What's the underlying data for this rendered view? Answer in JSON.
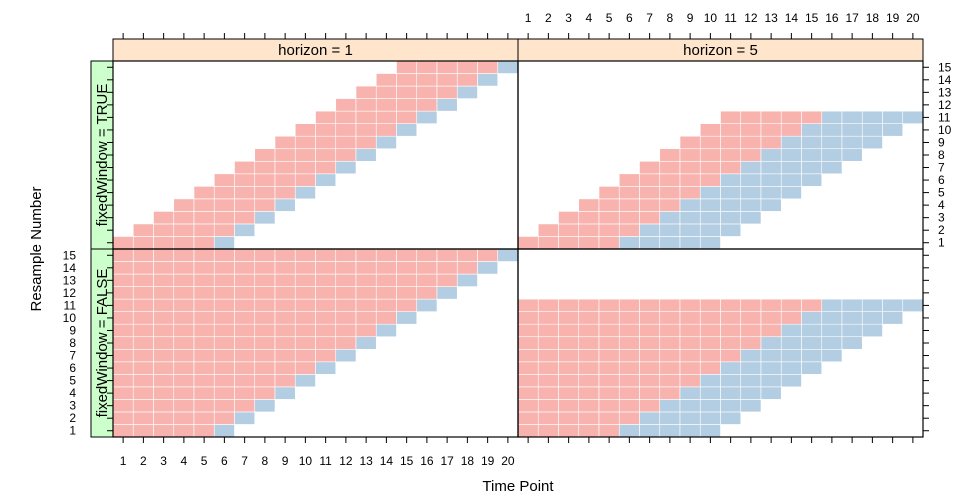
{
  "chart_data": {
    "type": "heatmap",
    "xlabel": "Time Point",
    "ylabel": "Resample Number",
    "x_ticks": [
      1,
      2,
      3,
      4,
      5,
      6,
      7,
      8,
      9,
      10,
      11,
      12,
      13,
      14,
      15,
      16,
      17,
      18,
      19,
      20
    ],
    "y_ticks": [
      1,
      2,
      3,
      4,
      5,
      6,
      7,
      8,
      9,
      10,
      11,
      12,
      13,
      14,
      15
    ],
    "xlim": [
      0.5,
      20.5
    ],
    "ylim": [
      0.5,
      15.5
    ],
    "grid": false,
    "legend": "none",
    "column_strip_labels": [
      "horizon = 1",
      "horizon = 5"
    ],
    "row_strip_labels": [
      "fixedWindow = TRUE",
      "fixedWindow = FALSE"
    ],
    "colors": {
      "training": "#F8B3AE",
      "testing": "#B3CDE3",
      "strip_column": "#FFE5CC",
      "strip_row": "#CCFFCC"
    },
    "panels": [
      {
        "row": "fixedWindow = TRUE",
        "column": "horizon = 1",
        "resamples": [
          {
            "resample": 1,
            "training": [
              1,
              5
            ],
            "testing": [
              6,
              6
            ]
          },
          {
            "resample": 2,
            "training": [
              2,
              6
            ],
            "testing": [
              7,
              7
            ]
          },
          {
            "resample": 3,
            "training": [
              3,
              7
            ],
            "testing": [
              8,
              8
            ]
          },
          {
            "resample": 4,
            "training": [
              4,
              8
            ],
            "testing": [
              9,
              9
            ]
          },
          {
            "resample": 5,
            "training": [
              5,
              9
            ],
            "testing": [
              10,
              10
            ]
          },
          {
            "resample": 6,
            "training": [
              6,
              10
            ],
            "testing": [
              11,
              11
            ]
          },
          {
            "resample": 7,
            "training": [
              7,
              11
            ],
            "testing": [
              12,
              12
            ]
          },
          {
            "resample": 8,
            "training": [
              8,
              12
            ],
            "testing": [
              13,
              13
            ]
          },
          {
            "resample": 9,
            "training": [
              9,
              13
            ],
            "testing": [
              14,
              14
            ]
          },
          {
            "resample": 10,
            "training": [
              10,
              14
            ],
            "testing": [
              15,
              15
            ]
          },
          {
            "resample": 11,
            "training": [
              11,
              15
            ],
            "testing": [
              16,
              16
            ]
          },
          {
            "resample": 12,
            "training": [
              12,
              16
            ],
            "testing": [
              17,
              17
            ]
          },
          {
            "resample": 13,
            "training": [
              13,
              17
            ],
            "testing": [
              18,
              18
            ]
          },
          {
            "resample": 14,
            "training": [
              14,
              18
            ],
            "testing": [
              19,
              19
            ]
          },
          {
            "resample": 15,
            "training": [
              15,
              19
            ],
            "testing": [
              20,
              20
            ]
          }
        ]
      },
      {
        "row": "fixedWindow = TRUE",
        "column": "horizon = 5",
        "resamples": [
          {
            "resample": 1,
            "training": [
              1,
              5
            ],
            "testing": [
              6,
              10
            ]
          },
          {
            "resample": 2,
            "training": [
              2,
              6
            ],
            "testing": [
              7,
              11
            ]
          },
          {
            "resample": 3,
            "training": [
              3,
              7
            ],
            "testing": [
              8,
              12
            ]
          },
          {
            "resample": 4,
            "training": [
              4,
              8
            ],
            "testing": [
              9,
              13
            ]
          },
          {
            "resample": 5,
            "training": [
              5,
              9
            ],
            "testing": [
              10,
              14
            ]
          },
          {
            "resample": 6,
            "training": [
              6,
              10
            ],
            "testing": [
              11,
              15
            ]
          },
          {
            "resample": 7,
            "training": [
              7,
              11
            ],
            "testing": [
              12,
              16
            ]
          },
          {
            "resample": 8,
            "training": [
              8,
              12
            ],
            "testing": [
              13,
              17
            ]
          },
          {
            "resample": 9,
            "training": [
              9,
              13
            ],
            "testing": [
              14,
              18
            ]
          },
          {
            "resample": 10,
            "training": [
              10,
              14
            ],
            "testing": [
              15,
              19
            ]
          },
          {
            "resample": 11,
            "training": [
              11,
              15
            ],
            "testing": [
              16,
              20
            ]
          }
        ]
      },
      {
        "row": "fixedWindow = FALSE",
        "column": "horizon = 1",
        "resamples": [
          {
            "resample": 1,
            "training": [
              1,
              5
            ],
            "testing": [
              6,
              6
            ]
          },
          {
            "resample": 2,
            "training": [
              1,
              6
            ],
            "testing": [
              7,
              7
            ]
          },
          {
            "resample": 3,
            "training": [
              1,
              7
            ],
            "testing": [
              8,
              8
            ]
          },
          {
            "resample": 4,
            "training": [
              1,
              8
            ],
            "testing": [
              9,
              9
            ]
          },
          {
            "resample": 5,
            "training": [
              1,
              9
            ],
            "testing": [
              10,
              10
            ]
          },
          {
            "resample": 6,
            "training": [
              1,
              10
            ],
            "testing": [
              11,
              11
            ]
          },
          {
            "resample": 7,
            "training": [
              1,
              11
            ],
            "testing": [
              12,
              12
            ]
          },
          {
            "resample": 8,
            "training": [
              1,
              12
            ],
            "testing": [
              13,
              13
            ]
          },
          {
            "resample": 9,
            "training": [
              1,
              13
            ],
            "testing": [
              14,
              14
            ]
          },
          {
            "resample": 10,
            "training": [
              1,
              14
            ],
            "testing": [
              15,
              15
            ]
          },
          {
            "resample": 11,
            "training": [
              1,
              15
            ],
            "testing": [
              16,
              16
            ]
          },
          {
            "resample": 12,
            "training": [
              1,
              16
            ],
            "testing": [
              17,
              17
            ]
          },
          {
            "resample": 13,
            "training": [
              1,
              17
            ],
            "testing": [
              18,
              18
            ]
          },
          {
            "resample": 14,
            "training": [
              1,
              18
            ],
            "testing": [
              19,
              19
            ]
          },
          {
            "resample": 15,
            "training": [
              1,
              19
            ],
            "testing": [
              20,
              20
            ]
          }
        ]
      },
      {
        "row": "fixedWindow = FALSE",
        "column": "horizon = 5",
        "resamples": [
          {
            "resample": 1,
            "training": [
              1,
              5
            ],
            "testing": [
              6,
              10
            ]
          },
          {
            "resample": 2,
            "training": [
              1,
              6
            ],
            "testing": [
              7,
              11
            ]
          },
          {
            "resample": 3,
            "training": [
              1,
              7
            ],
            "testing": [
              8,
              12
            ]
          },
          {
            "resample": 4,
            "training": [
              1,
              8
            ],
            "testing": [
              9,
              13
            ]
          },
          {
            "resample": 5,
            "training": [
              1,
              9
            ],
            "testing": [
              10,
              14
            ]
          },
          {
            "resample": 6,
            "training": [
              1,
              10
            ],
            "testing": [
              11,
              15
            ]
          },
          {
            "resample": 7,
            "training": [
              1,
              11
            ],
            "testing": [
              12,
              16
            ]
          },
          {
            "resample": 8,
            "training": [
              1,
              12
            ],
            "testing": [
              13,
              17
            ]
          },
          {
            "resample": 9,
            "training": [
              1,
              13
            ],
            "testing": [
              14,
              18
            ]
          },
          {
            "resample": 10,
            "training": [
              1,
              14
            ],
            "testing": [
              15,
              19
            ]
          },
          {
            "resample": 11,
            "training": [
              1,
              15
            ],
            "testing": [
              16,
              20
            ]
          }
        ]
      }
    ]
  }
}
